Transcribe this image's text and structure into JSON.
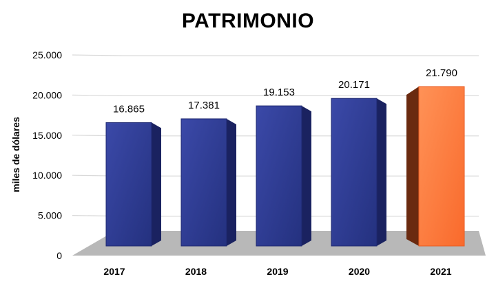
{
  "chart_data": {
    "type": "bar",
    "title": "PATRIMONIO",
    "ylabel": "miles de dólares",
    "xlabel": "",
    "categories": [
      "2017",
      "2018",
      "2019",
      "2020",
      "2021"
    ],
    "values": [
      16865,
      17381,
      19153,
      20171,
      21790
    ],
    "value_labels": [
      "16.865",
      "17.381",
      "19.153",
      "20.171",
      "21.790"
    ],
    "yticks": [
      0,
      5000,
      10000,
      15000,
      20000,
      25000
    ],
    "ytick_labels": [
      "0",
      "5.000",
      "10.000",
      "15.000",
      "20.000",
      "25.000"
    ],
    "ylim": [
      0,
      25000
    ],
    "style": "3d-columns",
    "grid": true,
    "colors": {
      "bar": "#2A3894",
      "bar_side": "#1A2260",
      "highlight_bar": "#FF7A3A",
      "highlight_side": "#6A2A10",
      "floor": "#B8B8B8",
      "grid": "#D9D9D9"
    },
    "highlight_index": 4
  }
}
